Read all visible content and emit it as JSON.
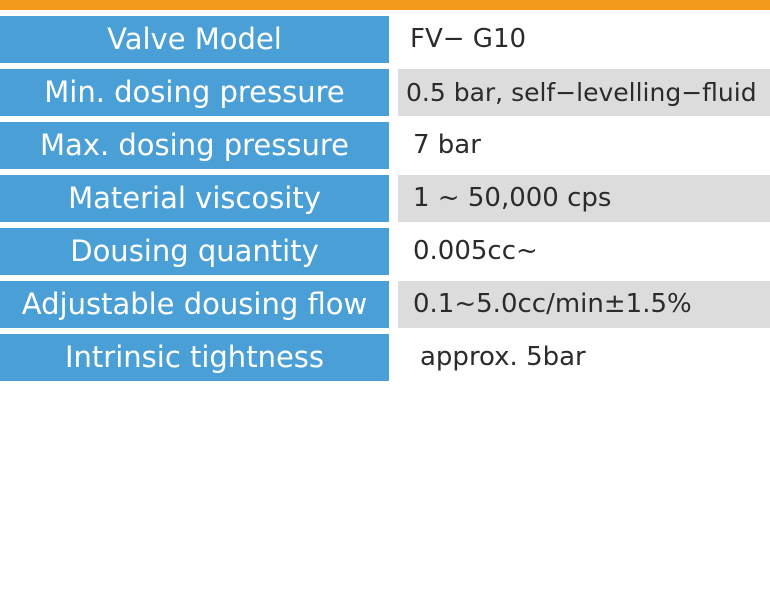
{
  "colors": {
    "accent_bar": "#f39a1c",
    "label_background": "#4aa0d6",
    "label_text": "#ffffff",
    "value_shaded_background": "#dcdcdc",
    "value_text": "#2b2b2b"
  },
  "specs": [
    {
      "label": "Valve Model",
      "value": "FV− G10"
    },
    {
      "label": "Min. dosing pressure",
      "value": "0.5 bar, self−levelling−fluid"
    },
    {
      "label": "Max. dosing pressure",
      "value": "7 bar"
    },
    {
      "label": "Material viscosity",
      "value": "1 ~ 50,000 cps"
    },
    {
      "label": "Dousing quantity",
      "value": "0.005cc~"
    },
    {
      "label": "Adjustable dousing flow",
      "value": "0.1~5.0cc/min±1.5%"
    },
    {
      "label": "Intrinsic tightness",
      "value": "approx. 5bar"
    }
  ]
}
